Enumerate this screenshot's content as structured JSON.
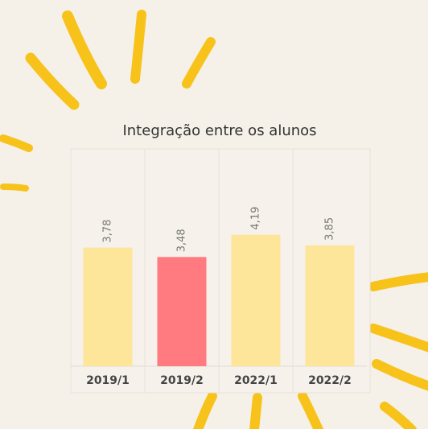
{
  "chart_data": {
    "type": "bar",
    "title": "Integração entre os alunos",
    "categories": [
      "2019/1",
      "2019/2",
      "2022/1",
      "2022/2"
    ],
    "values": [
      3.78,
      3.48,
      4.19,
      3.85
    ],
    "value_labels": [
      "3,78",
      "3,48",
      "4,19",
      "3,85"
    ],
    "colors": [
      "#fde599",
      "#ff7b80",
      "#fde599",
      "#fde599"
    ]
  }
}
